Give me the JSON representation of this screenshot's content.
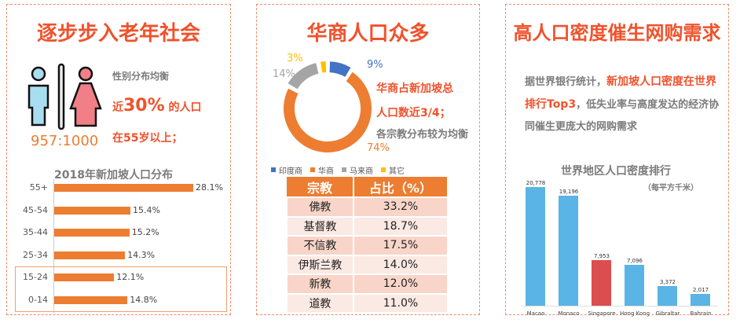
{
  "panel1": {
    "title": "逐步步入老年社会",
    "gender_label": "性别分布均衡",
    "line1_prefix": "近",
    "line1_big": "30%",
    "line1_suffix": "的人口",
    "line2": "在55岁以上；",
    "ratio": "957:1000",
    "chart_title": "2018年新加坡人口分布"
  },
  "panel2": {
    "title": "华商人口众多",
    "text1": "华商占新加坡总",
    "text2": "人口数近3/4；",
    "text3": "各宗教分布较为均衡",
    "table": {
      "headers": [
        "宗教",
        "占比（%）"
      ],
      "rows": [
        [
          "佛教",
          "33.2%"
        ],
        [
          "基督教",
          "18.7%"
        ],
        [
          "不信教",
          "17.5%"
        ],
        [
          "伊斯兰教",
          "14.0%"
        ],
        [
          "新教",
          "12.0%"
        ],
        [
          "道教",
          "11.0%"
        ]
      ]
    }
  },
  "panel3": {
    "title": "高人口密度催生网购需求",
    "p_a": "据世界银行统计，",
    "p_b": "新加坡人口密度在世界排行Top3",
    "p_c": "，低失业率与高度发达的经济协同催生更庞大的网购需求",
    "chart_title": "世界地区人口密度排行",
    "chart_subtitle": "（每平方千米）"
  },
  "chart_data": [
    {
      "type": "bar",
      "orientation": "horizontal",
      "title": "2018年新加坡人口分布",
      "categories": [
        "55+",
        "45-54",
        "35-44",
        "25-34",
        "15-24",
        "0-14"
      ],
      "values": [
        28.1,
        15.4,
        15.2,
        14.3,
        12.1,
        14.8
      ],
      "labels": [
        "28.1%",
        "15.4%",
        "15.2%",
        "14.3%",
        "12.1%",
        "14.8%"
      ],
      "highlighted": [
        "15-24",
        "0-14"
      ],
      "color": "#ed7d31"
    },
    {
      "type": "pie",
      "variant": "donut",
      "categories": [
        "印度商",
        "华商",
        "马来商",
        "其它"
      ],
      "values": [
        9,
        74,
        14,
        3
      ],
      "labels": [
        "9%",
        "74%",
        "14%",
        "3%"
      ],
      "colors": [
        "#4472c4",
        "#ed7d31",
        "#a5a5a5",
        "#ffc000"
      ],
      "legend": "bottom"
    },
    {
      "type": "bar",
      "title": "世界地区人口密度排行",
      "subtitle": "（每平方千米）",
      "categories": [
        "Macao",
        "Monaco",
        "Singapore",
        "Hong Kong",
        "Gibraltar",
        "Bahrain"
      ],
      "values": [
        20778,
        19196,
        7953,
        7096,
        3372,
        2017
      ],
      "labels": [
        "20,778",
        "19,196",
        "7,953",
        "7,096",
        "3,372",
        "2,017"
      ],
      "colors": [
        "#5ab4e5",
        "#5ab4e5",
        "#dc4d4f",
        "#5ab4e5",
        "#5ab4e5",
        "#5ab4e5"
      ]
    }
  ]
}
